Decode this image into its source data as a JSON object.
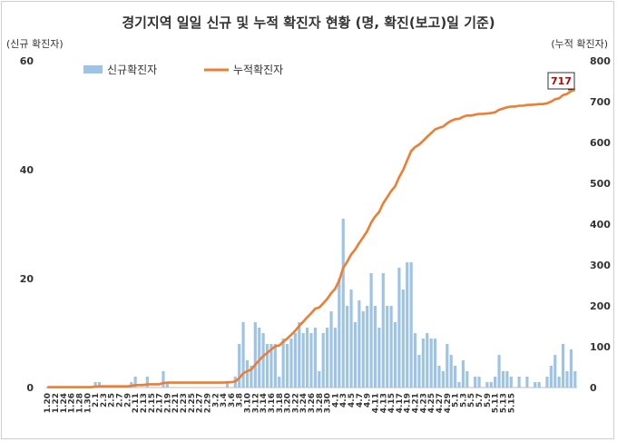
{
  "chart_data": {
    "type": "bar+line",
    "title": "경기지역 일일 신규 및 누적 확진자 현황 (명, 확진(보고)일 기준)",
    "ylabel_left": "(신규 확진자)",
    "ylabel_right": "(누적 확진자)",
    "ylim_left": [
      0,
      60
    ],
    "ylim_right": [
      0,
      800
    ],
    "yticks_left": [
      "0",
      "20",
      "40",
      "60"
    ],
    "yticks_right": [
      "0",
      "100",
      "200",
      "300",
      "400",
      "500",
      "600",
      "700",
      "800"
    ],
    "legend": {
      "bar": "신규확진자",
      "line": "누적확진자",
      "placement": "top-left"
    },
    "colors": {
      "bar": "#9dc3e6",
      "line": "#ed7d31",
      "callout": "#c00000"
    },
    "annotation": "717",
    "x_labels": [
      "1.20",
      "1.22",
      "1.24",
      "1.26",
      "1.28",
      "1.30",
      "2.1",
      "2.3",
      "2.5",
      "2.7",
      "2.9",
      "2.11",
      "2.13",
      "2.15",
      "2.17",
      "2.19",
      "2.21",
      "2.23",
      "2.25",
      "2.27",
      "2.29",
      "3.2",
      "3.4",
      "3.6",
      "3.8",
      "3.10",
      "3.12",
      "3.14",
      "3.16",
      "3.18",
      "3.20",
      "3.22",
      "3.24",
      "3.26",
      "3.28",
      "3.30",
      "4.1",
      "4.3",
      "4.5",
      "4.7",
      "4.9",
      "4.11",
      "4.13",
      "4.15",
      "4.17",
      "4.19",
      "4.21",
      "4.23",
      "4.25",
      "4.27",
      "4.29",
      "5.1",
      "5.3",
      "5.5",
      "5.7",
      "5.9",
      "5.11",
      "5.13",
      "5.15"
    ],
    "new_cases": [
      0,
      0,
      0,
      0,
      0,
      0,
      0,
      0,
      0,
      0,
      0,
      0,
      1,
      1,
      0,
      0,
      0,
      0,
      0,
      0,
      0,
      1,
      2,
      0,
      0,
      2,
      0,
      0,
      0,
      3,
      1,
      0,
      0,
      0,
      0,
      0,
      0,
      0,
      0,
      0,
      0,
      0,
      0,
      0,
      0,
      1,
      0,
      2,
      8,
      12,
      5,
      4,
      12,
      11,
      10,
      8,
      8,
      8,
      2,
      9,
      8,
      9,
      10,
      12,
      10,
      11,
      10,
      11,
      3,
      10,
      11,
      14,
      11,
      20,
      31,
      15,
      18,
      12,
      16,
      14,
      15,
      21,
      15,
      11,
      21,
      15,
      15,
      12,
      22,
      18,
      23,
      23,
      10,
      6,
      9,
      10,
      9,
      9,
      4,
      3,
      8,
      6,
      4,
      1,
      5,
      3,
      0,
      2,
      2,
      0,
      1,
      1,
      2,
      6,
      3,
      3,
      2,
      0,
      2,
      0,
      2,
      0,
      1,
      1,
      0,
      2,
      4,
      6,
      2,
      8,
      3,
      7,
      3
    ],
    "cumulative": [
      1,
      1,
      1,
      1,
      1,
      1,
      1,
      1,
      1,
      1,
      1,
      1,
      2,
      3,
      3,
      3,
      3,
      3,
      3,
      3,
      3,
      4,
      6,
      6,
      6,
      8,
      8,
      8,
      8,
      11,
      12,
      12,
      12,
      12,
      12,
      12,
      12,
      12,
      12,
      12,
      12,
      12,
      12,
      12,
      12,
      13,
      13,
      15,
      23,
      35,
      40,
      44,
      56,
      67,
      77,
      85,
      93,
      101,
      103,
      112,
      120,
      129,
      139,
      151,
      161,
      172,
      182,
      193,
      196,
      206,
      217,
      231,
      242,
      262,
      293,
      308,
      326,
      338,
      354,
      368,
      383,
      404,
      419,
      430,
      451,
      466,
      481,
      493,
      515,
      533,
      556,
      579,
      589,
      595,
      604,
      614,
      623,
      632,
      636,
      639,
      647,
      653,
      657,
      658,
      663,
      666,
      666,
      668,
      670,
      670,
      671,
      672,
      674,
      680,
      683,
      686,
      688,
      688,
      690,
      690,
      692,
      692,
      693,
      694,
      694,
      696,
      700,
      706,
      708,
      716,
      719,
      726,
      729
    ]
  }
}
